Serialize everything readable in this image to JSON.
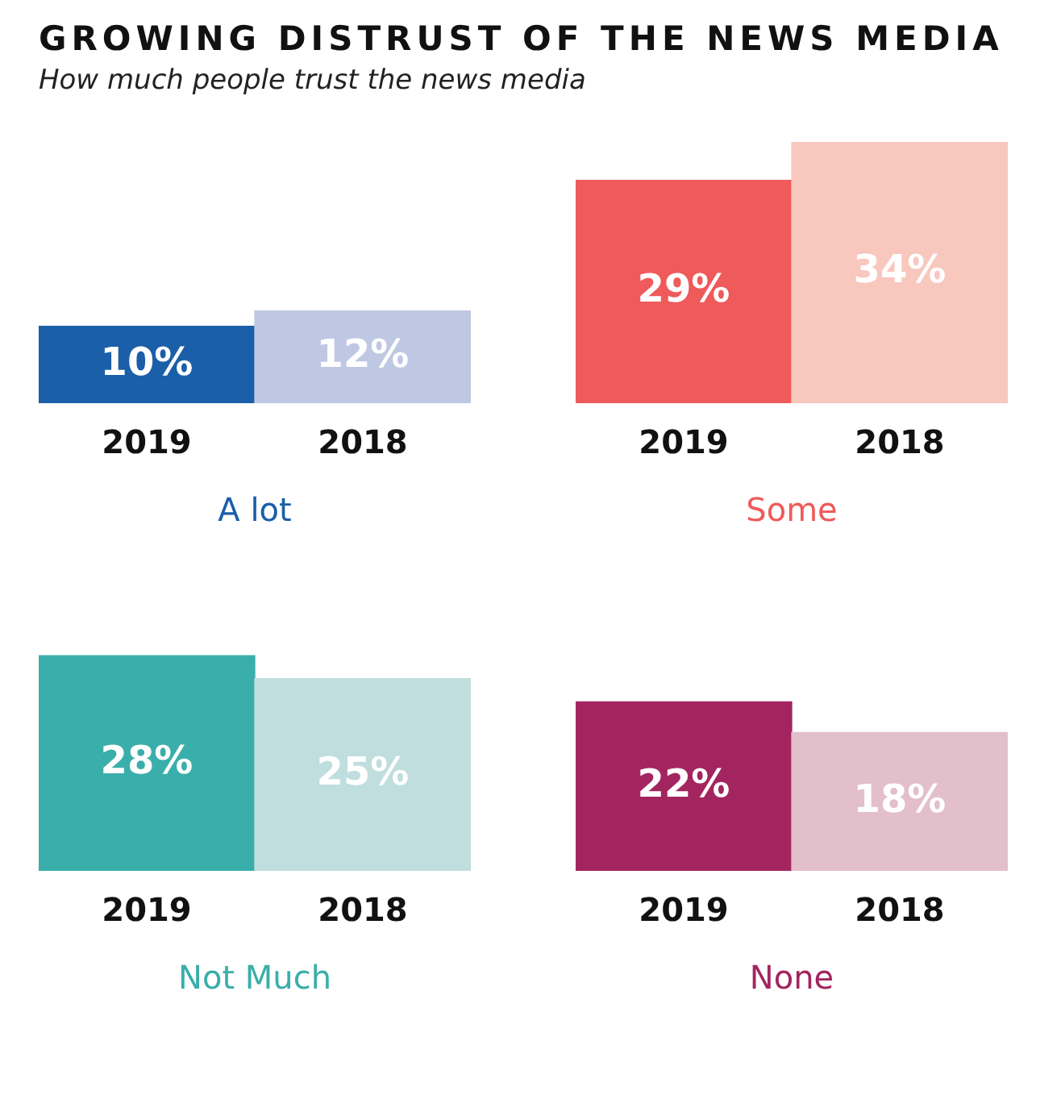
{
  "chart_data": [
    {
      "type": "bar",
      "title": "GROWING DISTRUST OF THE NEWS MEDIA",
      "subtitle": "How much people trust the news media",
      "xlabel": "A lot",
      "categories": [
        "2019",
        "2018"
      ],
      "values": [
        10,
        12
      ],
      "value_labels": [
        "10%",
        "12%"
      ],
      "colors": [
        "#1a5fa8",
        "#bfc8e3"
      ],
      "tick_labels": "x",
      "grid": false,
      "legend": false
    },
    {
      "type": "bar",
      "xlabel": "Some",
      "categories": [
        "2019",
        "2018"
      ],
      "values": [
        29,
        34
      ],
      "value_labels": [
        "29%",
        "34%"
      ],
      "colors": [
        "#ef5a5a",
        "#f8c7bd"
      ],
      "tick_labels": "x",
      "grid": false,
      "legend": false
    },
    {
      "type": "bar",
      "xlabel": "Not Much",
      "categories": [
        "2019",
        "2018"
      ],
      "values": [
        28,
        25
      ],
      "value_labels": [
        "28%",
        "25%"
      ],
      "colors": [
        "#3aaeaa",
        "#bfdedd"
      ],
      "tick_labels": "x",
      "grid": false,
      "legend": false
    },
    {
      "type": "bar",
      "xlabel": "None",
      "categories": [
        "2019",
        "2018"
      ],
      "values": [
        22,
        18
      ],
      "value_labels": [
        "22%",
        "18%"
      ],
      "colors": [
        "#a3255f",
        "#e2bfcb"
      ],
      "tick_labels": "x",
      "grid": false,
      "legend": false
    }
  ]
}
